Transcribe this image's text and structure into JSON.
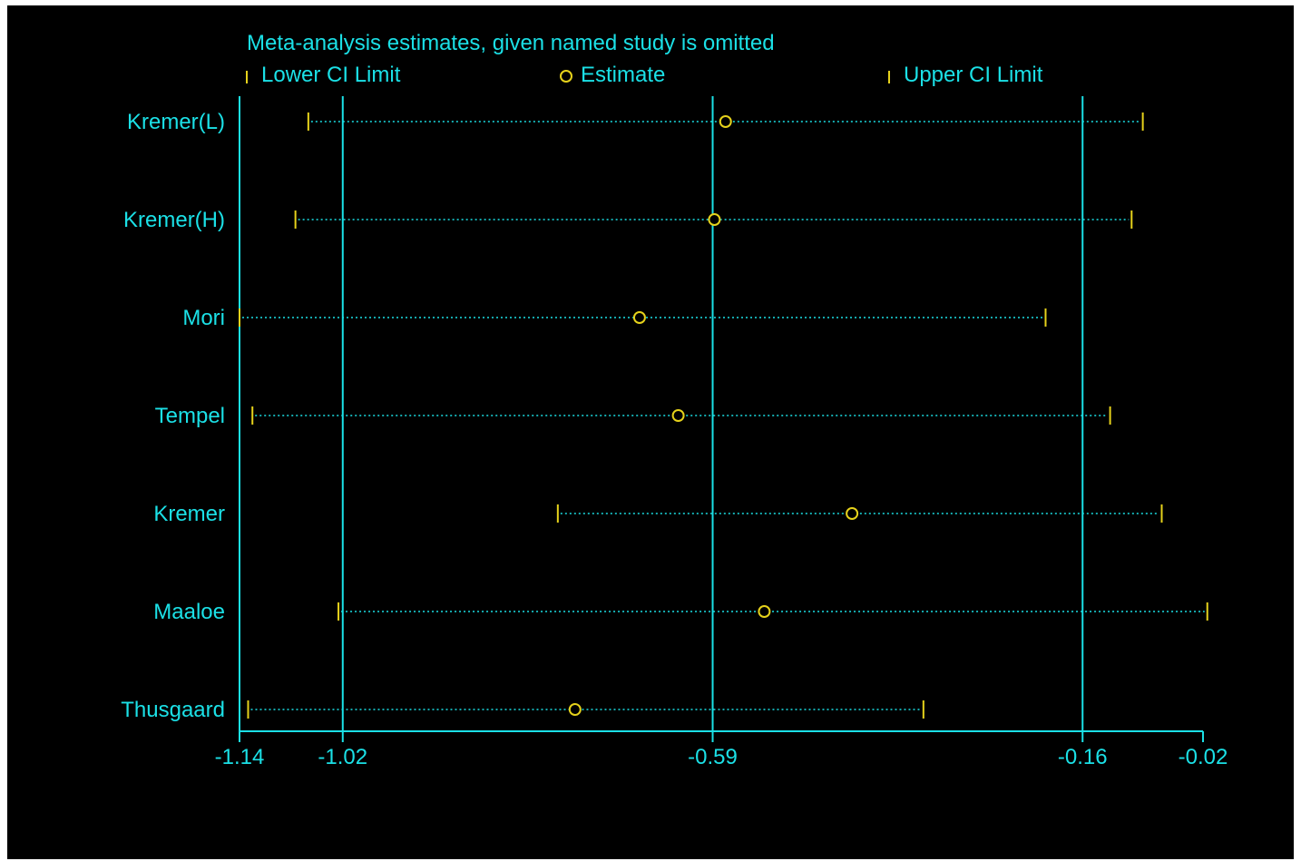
{
  "colors": {
    "background": "#000000",
    "axis": "#1be0e6",
    "text": "#1be0e6",
    "ci_marker": "#e6d21b",
    "estimate_marker": "#e6d21b",
    "dotted_line": "#1be0e6"
  },
  "chart_data": {
    "type": "scatter",
    "title": "Meta-analysis estimates, given named study is omitted",
    "legend": {
      "placement": "top",
      "entries": [
        {
          "marker": "tick",
          "label": "Lower CI Limit"
        },
        {
          "marker": "circle",
          "label": "Estimate"
        },
        {
          "marker": "tick",
          "label": "Upper CI Limit"
        }
      ]
    },
    "xlim": [
      -1.14,
      -0.02
    ],
    "x_ticks": [
      -1.14,
      -1.02,
      -0.59,
      -0.16,
      -0.02
    ],
    "x_tick_labels": [
      "-1.14",
      "-1.02",
      "-0.59",
      "-0.16",
      "-0.02"
    ],
    "vertical_reference_lines": [
      -1.14,
      -1.02,
      -0.59,
      -0.16
    ],
    "studies": [
      "Kremer(L)",
      "Kremer(H)",
      "Mori",
      "Tempel",
      "Kremer",
      "Maaloe",
      "Thusgaard"
    ],
    "series": [
      {
        "name": "Lower CI Limit",
        "values": [
          -1.06,
          -1.075,
          -1.14,
          -1.125,
          -0.77,
          -1.025,
          -1.13
        ]
      },
      {
        "name": "Estimate",
        "values": [
          -0.575,
          -0.588,
          -0.675,
          -0.63,
          -0.428,
          -0.53,
          -0.75
        ]
      },
      {
        "name": "Upper CI Limit",
        "values": [
          -0.09,
          -0.103,
          -0.203,
          -0.128,
          -0.068,
          -0.015,
          -0.345
        ]
      }
    ]
  }
}
